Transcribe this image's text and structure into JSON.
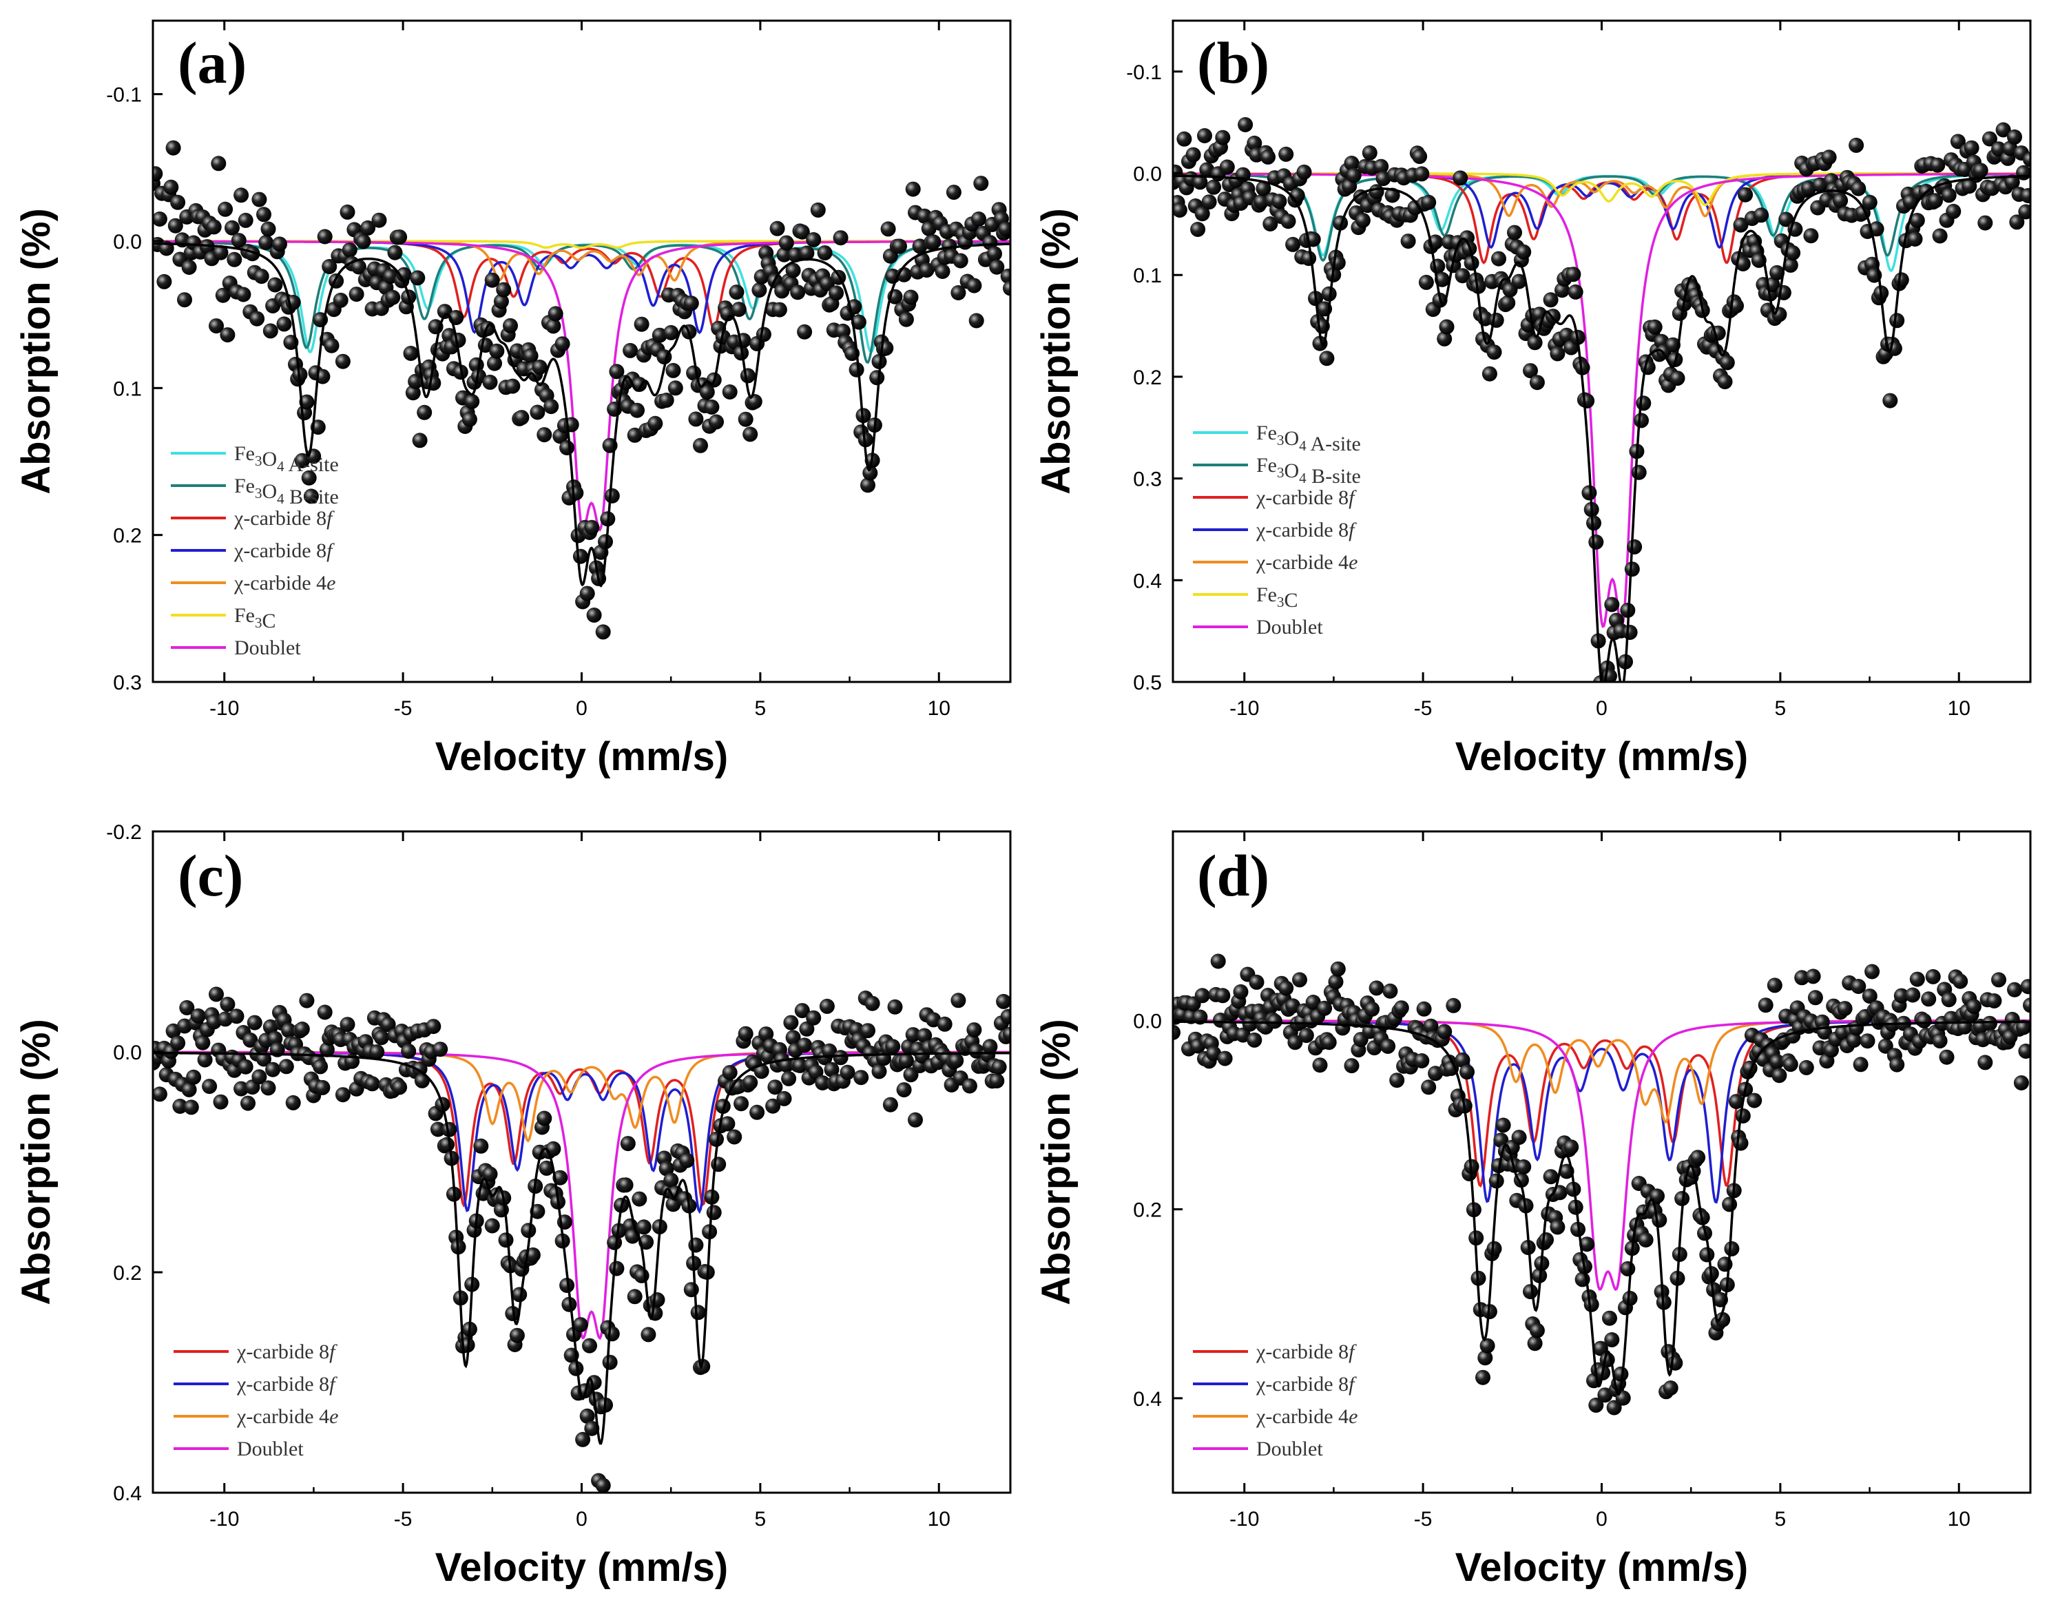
{
  "figure": {
    "description_label": "Mossbauer spectra panels (a)-(d)"
  },
  "chart_data": [
    {
      "type": "scatter",
      "panel": "(a)",
      "xlabel": "Velocity (mm/s)",
      "ylabel": "Absorption (%)",
      "xlim": [
        -12,
        12
      ],
      "ylim": [
        -0.15,
        0.3
      ],
      "y_inverted": true,
      "xticks": [
        -10,
        -5,
        0,
        5,
        10
      ],
      "yticks": [
        -0.1,
        0.0,
        0.1,
        0.2,
        0.3
      ],
      "ytick_labels": [
        "-0.1",
        "0.0",
        "0.1",
        "0.2",
        "0.3"
      ],
      "xtick_labels": [
        "-10",
        "-5",
        "0",
        "5",
        "10"
      ],
      "noise": 0.028,
      "data_points": "black spheres scattered around the total fit",
      "legend": [
        {
          "label": "Fe3O4 A-site",
          "color": "#40e0e0"
        },
        {
          "label": "Fe3O4 B-site",
          "color": "#1f7f7a"
        },
        {
          "label": "χ-carbide 8f",
          "color": "#e02020"
        },
        {
          "label": "χ-carbide 8f",
          "color": "#1f1fd0"
        },
        {
          "label": "χ-carbide 4e",
          "color": "#f08c20"
        },
        {
          "label": "Fe3C",
          "color": "#f0e020"
        },
        {
          "label": "Doublet",
          "color": "#e020e0"
        }
      ],
      "components": [
        {
          "name": "Fe3O4 A-site",
          "color": "#40e0e0",
          "width": 0.32,
          "peaks": [
            [
              -7.6,
              0.075
            ],
            [
              -4.3,
              0.045
            ],
            [
              -1.05,
              0.015
            ],
            [
              1.55,
              0.015
            ],
            [
              4.8,
              0.045
            ],
            [
              8.1,
              0.075
            ]
          ]
        },
        {
          "name": "Fe3O4 B-site",
          "color": "#1f7f7a",
          "width": 0.32,
          "peaks": [
            [
              -7.7,
              0.072
            ],
            [
              -4.4,
              0.052
            ],
            [
              -1.15,
              0.018
            ],
            [
              1.45,
              0.018
            ],
            [
              4.7,
              0.052
            ],
            [
              8.0,
              0.082
            ]
          ]
        },
        {
          "name": "χ-carbide 8f (red)",
          "color": "#e02020",
          "width": 0.28,
          "peaks": [
            [
              -3.3,
              0.05
            ],
            [
              -1.9,
              0.035
            ],
            [
              -0.5,
              0.012
            ],
            [
              0.9,
              0.012
            ],
            [
              2.2,
              0.035
            ],
            [
              3.7,
              0.058
            ]
          ]
        },
        {
          "name": "χ-carbide 8f (blue)",
          "color": "#1f1fd0",
          "width": 0.28,
          "peaks": [
            [
              -3.0,
              0.06
            ],
            [
              -1.6,
              0.04
            ],
            [
              -0.3,
              0.014
            ],
            [
              0.7,
              0.014
            ],
            [
              2.0,
              0.04
            ],
            [
              3.3,
              0.06
            ]
          ]
        },
        {
          "name": "χ-carbide 4e",
          "color": "#f08c20",
          "width": 0.26,
          "peaks": [
            [
              -2.3,
              0.025
            ],
            [
              -1.2,
              0.02
            ],
            [
              -0.1,
              0.01
            ],
            [
              0.8,
              0.01
            ],
            [
              1.6,
              0.02
            ],
            [
              2.6,
              0.025
            ]
          ]
        },
        {
          "name": "Fe3C",
          "color": "#f0e020",
          "width": 0.3,
          "peaks": [
            [
              -1.0,
              0.004
            ],
            [
              0.0,
              0.004
            ],
            [
              1.0,
              0.004
            ]
          ]
        },
        {
          "name": "Doublet",
          "color": "#e020e0",
          "width": 0.32,
          "peaks": [
            [
              0.0,
              0.155
            ],
            [
              0.55,
              0.155
            ]
          ]
        }
      ]
    },
    {
      "type": "scatter",
      "panel": "(b)",
      "xlabel": "Velocity (mm/s)",
      "ylabel": "Absorption (%)",
      "xlim": [
        -12,
        12
      ],
      "ylim": [
        -0.15,
        0.5
      ],
      "y_inverted": true,
      "xticks": [
        -10,
        -5,
        0,
        5,
        10
      ],
      "yticks": [
        -0.1,
        0.0,
        0.1,
        0.2,
        0.3,
        0.4,
        0.5
      ],
      "ytick_labels": [
        "-0.1",
        "0.0",
        "0.1",
        "0.2",
        "0.3",
        "0.4",
        "0.5"
      ],
      "xtick_labels": [
        "-10",
        "-5",
        "0",
        "5",
        "10"
      ],
      "noise": 0.03,
      "data_points": "black spheres scattered around the total fit",
      "legend": [
        {
          "label": "Fe3O4 A-site",
          "color": "#40e0e0"
        },
        {
          "label": "Fe3O4 B-site",
          "color": "#1f7f7a"
        },
        {
          "label": "χ-carbide 8f",
          "color": "#e02020"
        },
        {
          "label": "χ-carbide 8f",
          "color": "#1f1fd0"
        },
        {
          "label": "χ-carbide 4e",
          "color": "#f08c20"
        },
        {
          "label": "Fe3C",
          "color": "#f0e020"
        },
        {
          "label": "Doublet",
          "color": "#e020e0"
        }
      ],
      "components": [
        {
          "name": "Fe3O4 A-site",
          "color": "#40e0e0",
          "width": 0.32,
          "peaks": [
            [
              -7.8,
              0.08
            ],
            [
              -4.5,
              0.055
            ],
            [
              -1.2,
              0.02
            ],
            [
              1.6,
              0.02
            ],
            [
              4.9,
              0.065
            ],
            [
              8.1,
              0.095
            ]
          ]
        },
        {
          "name": "Fe3O4 B-site",
          "color": "#1f7f7a",
          "width": 0.32,
          "peaks": [
            [
              -7.8,
              0.085
            ],
            [
              -4.4,
              0.06
            ],
            [
              -1.1,
              0.02
            ],
            [
              1.5,
              0.02
            ],
            [
              4.8,
              0.06
            ],
            [
              8.0,
              0.08
            ]
          ]
        },
        {
          "name": "χ-carbide 8f (red)",
          "color": "#e02020",
          "width": 0.28,
          "peaks": [
            [
              -3.3,
              0.085
            ],
            [
              -1.9,
              0.06
            ],
            [
              -0.5,
              0.02
            ],
            [
              0.9,
              0.02
            ],
            [
              2.1,
              0.06
            ],
            [
              3.5,
              0.085
            ]
          ]
        },
        {
          "name": "χ-carbide 8f (blue)",
          "color": "#1f1fd0",
          "width": 0.28,
          "peaks": [
            [
              -3.1,
              0.07
            ],
            [
              -1.8,
              0.05
            ],
            [
              -0.4,
              0.018
            ],
            [
              0.8,
              0.018
            ],
            [
              2.0,
              0.05
            ],
            [
              3.3,
              0.07
            ]
          ]
        },
        {
          "name": "χ-carbide 4e",
          "color": "#f08c20",
          "width": 0.26,
          "peaks": [
            [
              -2.6,
              0.04
            ],
            [
              -1.4,
              0.03
            ],
            [
              -0.2,
              0.015
            ],
            [
              0.9,
              0.015
            ],
            [
              1.8,
              0.03
            ],
            [
              2.9,
              0.04
            ]
          ]
        },
        {
          "name": "Fe3C",
          "color": "#f0e020",
          "width": 0.3,
          "peaks": [
            [
              -1.1,
              0.02
            ],
            [
              0.2,
              0.025
            ],
            [
              1.4,
              0.02
            ],
            [
              2.9,
              0.03
            ]
          ]
        },
        {
          "name": "Doublet",
          "color": "#e020e0",
          "width": 0.34,
          "peaks": [
            [
              0.0,
              0.355
            ],
            [
              0.6,
              0.355
            ]
          ]
        }
      ]
    },
    {
      "type": "scatter",
      "panel": "(c)",
      "xlabel": "Velocity (mm/s)",
      "ylabel": "Absorption (%)",
      "xlim": [
        -12,
        12
      ],
      "ylim": [
        -0.2,
        0.4
      ],
      "y_inverted": true,
      "xticks": [
        -10,
        -5,
        0,
        5,
        10
      ],
      "yticks": [
        -0.2,
        0.0,
        0.2,
        0.4
      ],
      "ytick_labels": [
        "-0.2",
        "0.0",
        "0.2",
        "0.4"
      ],
      "xtick_labels": [
        "-10",
        "-5",
        "0",
        "5",
        "10"
      ],
      "noise": 0.03,
      "data_points": "black spheres scattered around the total fit",
      "legend": [
        {
          "label": "χ-carbide 8f",
          "color": "#e02020"
        },
        {
          "label": "χ-carbide 8f",
          "color": "#1f1fd0"
        },
        {
          "label": "χ-carbide 4e",
          "color": "#f08c20"
        },
        {
          "label": "Doublet",
          "color": "#e020e0"
        }
      ],
      "components": [
        {
          "name": "χ-carbide 8f (red)",
          "color": "#e02020",
          "width": 0.26,
          "peaks": [
            [
              -3.3,
              0.135
            ],
            [
              -1.9,
              0.095
            ],
            [
              -0.6,
              0.03
            ],
            [
              0.5,
              0.03
            ],
            [
              1.9,
              0.095
            ],
            [
              3.4,
              0.135
            ]
          ]
        },
        {
          "name": "χ-carbide 8f (blue)",
          "color": "#1f1fd0",
          "width": 0.26,
          "peaks": [
            [
              -3.2,
              0.14
            ],
            [
              -1.8,
              0.1
            ],
            [
              -0.4,
              0.035
            ],
            [
              0.6,
              0.035
            ],
            [
              2.0,
              0.1
            ],
            [
              3.3,
              0.14
            ]
          ]
        },
        {
          "name": "χ-carbide 4e",
          "color": "#f08c20",
          "width": 0.25,
          "peaks": [
            [
              -2.5,
              0.06
            ],
            [
              -1.5,
              0.075
            ],
            [
              -0.3,
              0.03
            ],
            [
              0.9,
              0.03
            ],
            [
              1.5,
              0.06
            ],
            [
              2.6,
              0.06
            ]
          ]
        },
        {
          "name": "Doublet",
          "color": "#e020e0",
          "width": 0.32,
          "peaks": [
            [
              0.0,
              0.205
            ],
            [
              0.55,
              0.205
            ]
          ]
        }
      ]
    },
    {
      "type": "scatter",
      "panel": "(d)",
      "xlabel": "Velocity (mm/s)",
      "ylabel": "Absorption (%)",
      "xlim": [
        -12,
        12
      ],
      "ylim": [
        -0.2,
        0.5
      ],
      "y_inverted": true,
      "xticks": [
        -10,
        -5,
        0,
        5,
        10
      ],
      "yticks": [
        0.0,
        0.2,
        0.4
      ],
      "ytick_labels": [
        "0.0",
        "0.2",
        "0.4"
      ],
      "xtick_labels": [
        "-10",
        "-5",
        "0",
        "5",
        "10"
      ],
      "noise": 0.03,
      "data_points": "black spheres scattered around the total fit",
      "legend": [
        {
          "label": "χ-carbide 8f",
          "color": "#e02020"
        },
        {
          "label": "χ-carbide 8f",
          "color": "#1f1fd0"
        },
        {
          "label": "χ-carbide 4e",
          "color": "#f08c20"
        },
        {
          "label": "Doublet",
          "color": "#e020e0"
        }
      ],
      "components": [
        {
          "name": "χ-carbide 8f (red)",
          "color": "#e02020",
          "width": 0.28,
          "peaks": [
            [
              -3.4,
              0.17
            ],
            [
              -1.9,
              0.12
            ],
            [
              -0.5,
              0.04
            ],
            [
              0.7,
              0.04
            ],
            [
              2.0,
              0.12
            ],
            [
              3.5,
              0.17
            ]
          ]
        },
        {
          "name": "χ-carbide 8f (blue)",
          "color": "#1f1fd0",
          "width": 0.28,
          "peaks": [
            [
              -3.2,
              0.185
            ],
            [
              -1.8,
              0.135
            ],
            [
              -0.6,
              0.06
            ],
            [
              0.6,
              0.06
            ],
            [
              1.9,
              0.135
            ],
            [
              3.2,
              0.185
            ]
          ]
        },
        {
          "name": "χ-carbide 4e",
          "color": "#f08c20",
          "width": 0.26,
          "peaks": [
            [
              -2.4,
              0.06
            ],
            [
              -1.3,
              0.07
            ],
            [
              -0.1,
              0.04
            ],
            [
              1.2,
              0.07
            ],
            [
              1.8,
              0.09
            ],
            [
              2.8,
              0.08
            ]
          ]
        },
        {
          "name": "Doublet",
          "color": "#e020e0",
          "width": 0.34,
          "peaks": [
            [
              -0.1,
              0.22
            ],
            [
              0.45,
              0.22
            ]
          ]
        }
      ]
    }
  ]
}
